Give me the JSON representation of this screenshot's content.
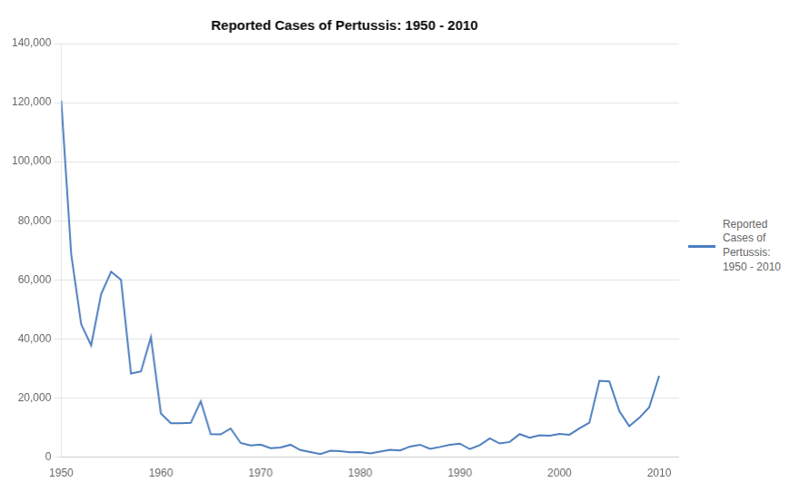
{
  "chart_data": {
    "type": "line",
    "title": "Reported Cases of Pertussis: 1950 - 2010",
    "x": [
      1950,
      1951,
      1952,
      1953,
      1954,
      1955,
      1956,
      1957,
      1958,
      1959,
      1960,
      1961,
      1962,
      1963,
      1964,
      1965,
      1966,
      1967,
      1968,
      1969,
      1970,
      1971,
      1972,
      1973,
      1974,
      1975,
      1976,
      1977,
      1978,
      1979,
      1980,
      1981,
      1982,
      1983,
      1984,
      1985,
      1986,
      1987,
      1988,
      1989,
      1990,
      1991,
      1992,
      1993,
      1994,
      1995,
      1996,
      1997,
      1998,
      1999,
      2000,
      2001,
      2002,
      2003,
      2004,
      2005,
      2006,
      2007,
      2008,
      2009,
      2010
    ],
    "series": [
      {
        "name": "Reported\nCases of\nPertussis:\n1950 - 2010",
        "color": "#4d7ebf",
        "values": [
          120718,
          68687,
          45030,
          37825,
          55178,
          62786,
          60016,
          28295,
          29005,
          40597,
          14809,
          11468,
          11503,
          11594,
          18930,
          7773,
          7717,
          9718,
          4810,
          3956,
          4249,
          3036,
          3287,
          4200,
          2402,
          1738,
          1010,
          2177,
          2063,
          1623,
          1730,
          1248,
          1895,
          2463,
          2276,
          3589,
          4195,
          2823,
          3450,
          4157,
          4570,
          2719,
          4083,
          6335,
          4617,
          5137,
          7796,
          6564,
          7405,
          7288,
          7867,
          7580,
          9771,
          11647,
          25827,
          25616,
          15632,
          10454,
          13278,
          16858,
          27550
        ]
      }
    ],
    "xlim": [
      1950,
      2012
    ],
    "xticks": [
      1950,
      1960,
      1970,
      1980,
      1990,
      2000,
      2010
    ],
    "ylim": [
      0,
      140000
    ],
    "yticks": [
      0,
      {
        "value": 20000,
        "label": "20,000"
      },
      {
        "value": 40000,
        "label": "40,000"
      },
      {
        "value": 60000,
        "label": "60,000"
      },
      {
        "value": 80000,
        "label": "80,000"
      },
      {
        "value": 100000,
        "label": "100,000"
      },
      {
        "value": 120000,
        "label": "120,000"
      },
      {
        "value": 140000,
        "label": "140,000"
      }
    ],
    "grid": "y",
    "legend": "right"
  }
}
